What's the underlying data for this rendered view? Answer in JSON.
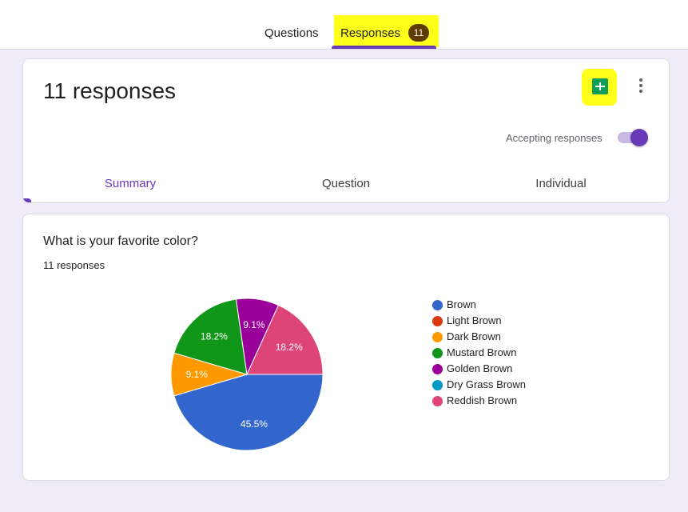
{
  "tabs": {
    "questions_label": "Questions",
    "responses_label": "Responses",
    "responses_count": "11"
  },
  "header": {
    "title": "11 responses",
    "sheets_icon": "google-sheets-icon",
    "more_icon": "more-vert-icon",
    "accepting_label": "Accepting responses",
    "accepting_on": true,
    "sub_tabs": [
      "Summary",
      "Question",
      "Individual"
    ],
    "active_sub_tab": "Summary"
  },
  "question": {
    "title": "What is your favorite color?",
    "response_count": "11 responses"
  },
  "colors": {
    "accent": "#673ab7",
    "highlight": "#ffff1a",
    "sheets_green": "#0f9d58"
  },
  "chart_data": {
    "type": "pie",
    "categories": [
      "Brown",
      "Light Brown",
      "Dark Brown",
      "Mustard Brown",
      "Golden Brown",
      "Dry Grass Brown",
      "Reddish Brown"
    ],
    "values": [
      5,
      0,
      1,
      2,
      1,
      0,
      2
    ],
    "percent_labels": [
      "45.5%",
      "",
      "9.1%",
      "18.2%",
      "9.1%",
      "",
      "18.2%"
    ],
    "colors": [
      "#3366cc",
      "#dc3912",
      "#ff9900",
      "#109618",
      "#990099",
      "#0099c6",
      "#dd4477"
    ],
    "legend_position": "right"
  }
}
